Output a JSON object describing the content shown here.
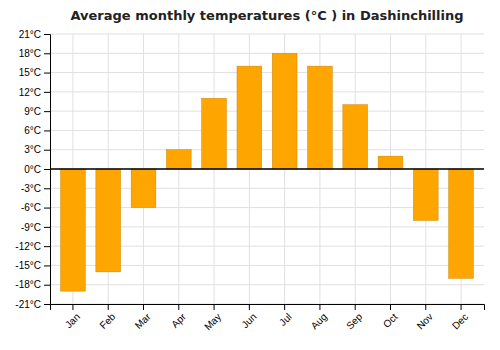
{
  "chart_data": {
    "type": "bar",
    "title": "Average monthly temperatures (°C ) in Dashinchilling",
    "categories": [
      "Jan",
      "Feb",
      "Mar",
      "Apr",
      "May",
      "Jun",
      "Jul",
      "Aug",
      "Sep",
      "Oct",
      "Nov",
      "Dec"
    ],
    "values": [
      -19,
      -16,
      -6,
      3,
      11,
      16,
      18,
      16,
      10,
      2,
      -8,
      -17
    ],
    "color": "#FFA500",
    "ylim": [
      -21,
      21
    ],
    "yticks": [
      {
        "value": -21,
        "label": "-21°C"
      },
      {
        "value": -18,
        "label": "-18°C"
      },
      {
        "value": -15,
        "label": "-15°C"
      },
      {
        "value": -12,
        "label": "-12°C"
      },
      {
        "value": -9,
        "label": "-9°C"
      },
      {
        "value": -6,
        "label": "-6°C"
      },
      {
        "value": -3,
        "label": "-3°C"
      },
      {
        "value": 0,
        "label": "0°C"
      },
      {
        "value": 3,
        "label": "3°C"
      },
      {
        "value": 6,
        "label": "6°C"
      },
      {
        "value": 9,
        "label": "9°C"
      },
      {
        "value": 12,
        "label": "12°C"
      },
      {
        "value": 15,
        "label": "15°C"
      },
      {
        "value": 18,
        "label": "18°C"
      },
      {
        "value": 21,
        "label": "21°C"
      }
    ],
    "grid": true
  }
}
